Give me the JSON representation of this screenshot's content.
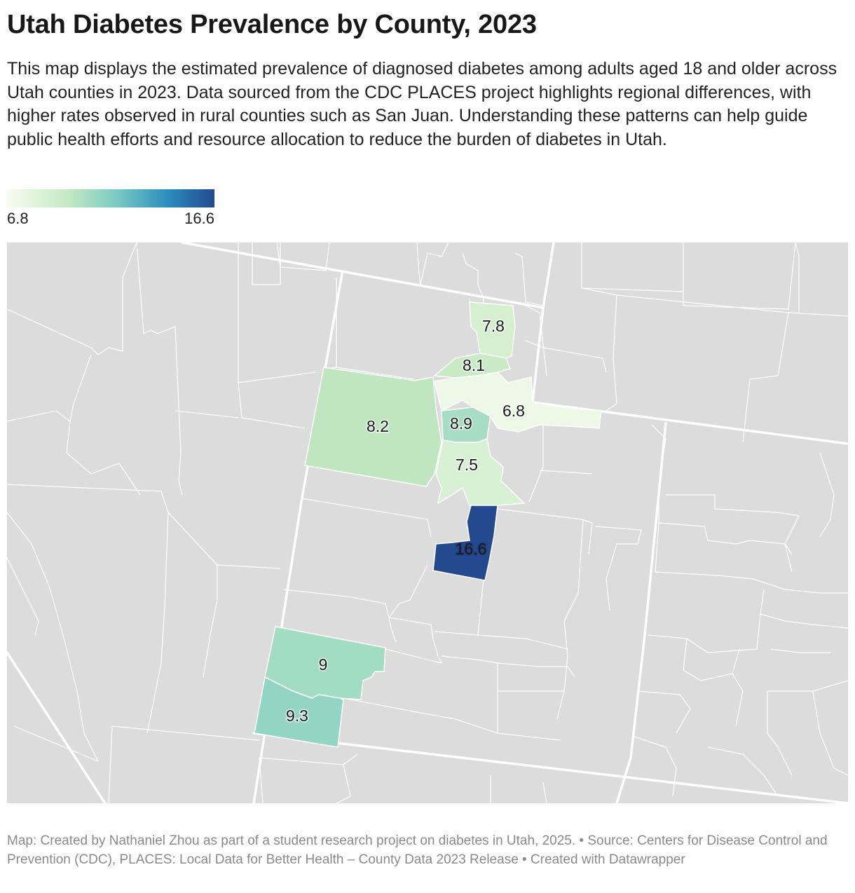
{
  "title": "Utah Diabetes Prevalence by County, 2023",
  "description": "This map displays the estimated prevalence of diagnosed diabetes among adults aged 18 and older across Utah counties in 2023. Data sourced from the CDC PLACES project highlights regional differences, with higher rates observed in rural counties such as San Juan. Understanding these patterns can help guide public health efforts and resource allocation to reduce the burden of diabetes in Utah.",
  "legend": {
    "min": "6.8",
    "max": "16.6"
  },
  "colors": {
    "scale_low": "#f7fcf0",
    "scale_mid": "#7ccbc4",
    "scale_high": "#234a8e",
    "no_data": "#dcdcdc",
    "border": "#ffffff"
  },
  "counties": [
    {
      "value": 7.8,
      "label": "7.8",
      "color": "#d5efcf"
    },
    {
      "value": 8.1,
      "label": "8.1",
      "color": "#c8eac5"
    },
    {
      "value": 8.2,
      "label": "8.2",
      "color": "#c0e6c0"
    },
    {
      "value": 8.9,
      "label": "8.9",
      "color": "#a8ddc5"
    },
    {
      "value": 6.8,
      "label": "6.8",
      "color": "#eef8e7"
    },
    {
      "value": 7.5,
      "label": "7.5",
      "color": "#d8f0d3"
    },
    {
      "value": 16.6,
      "label": "16.6",
      "color": "#234a8e"
    },
    {
      "value": 9,
      "label": "9",
      "color": "#a2dcc3"
    },
    {
      "value": 9.3,
      "label": "9.3",
      "color": "#92d5c3"
    }
  ],
  "footer": "Map: Created by Nathaniel Zhou as part of a student research project on diabetes in Utah, 2025. • Source: Centers for Disease Control and Prevention (CDC), PLACES: Local Data for Better Health – County Data 2023 Release • Created with Datawrapper"
}
